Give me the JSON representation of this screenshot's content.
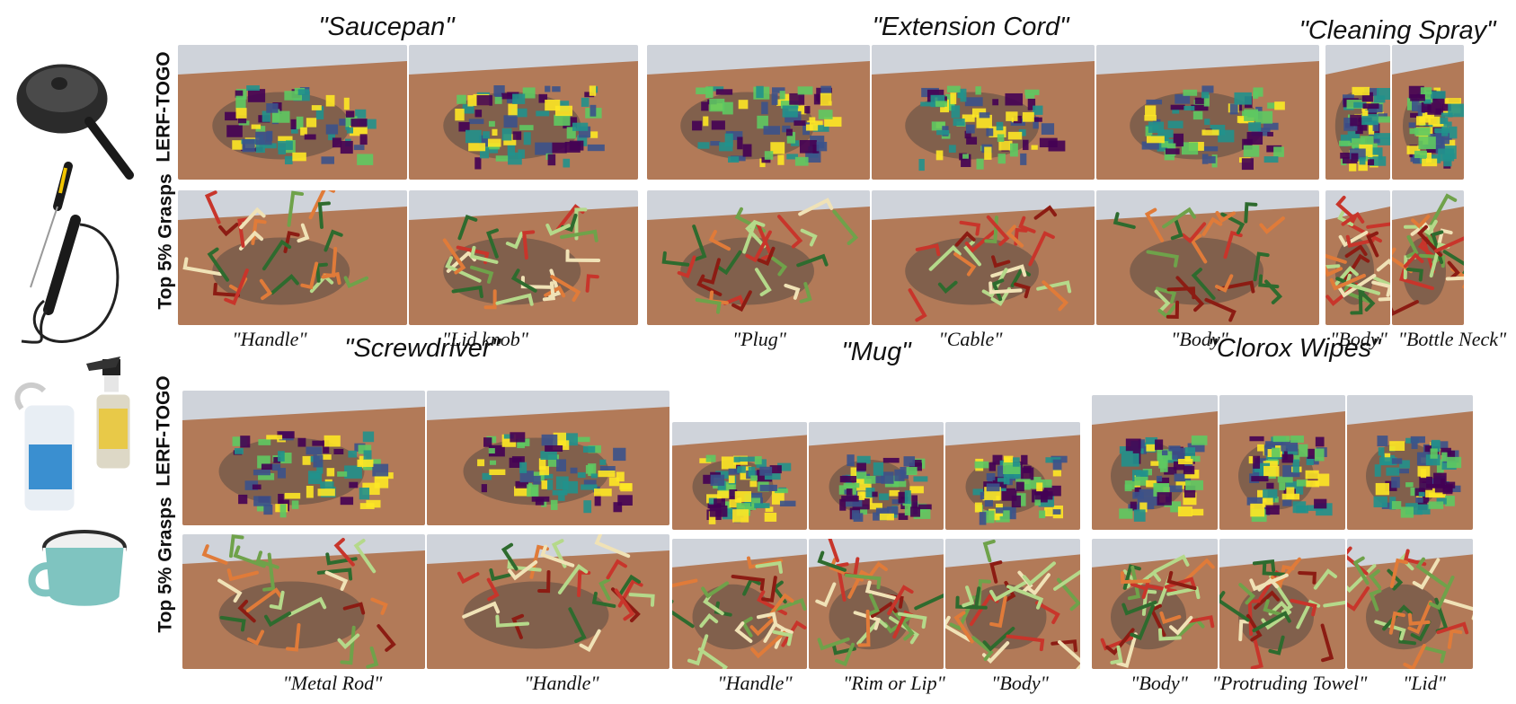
{
  "groups": [
    {
      "title": "\"Saucepan\"",
      "captions": [
        "\"Handle\"",
        "\"Lid knob\""
      ]
    },
    {
      "title": "\"Extension Cord\"",
      "captions": [
        "\"Plug\"",
        "\"Cable\"",
        "\"Body\""
      ]
    },
    {
      "title": "\"Cleaning Spray\"",
      "captions": [
        "\"Body\"",
        "\"Bottle Neck\""
      ]
    },
    {
      "title": "\"Screwdriver\"",
      "captions": [
        "\"Metal Rod\"",
        "\"Handle\""
      ]
    },
    {
      "title": "\"Mug\"",
      "captions": [
        "\"Handle\"",
        "\"Rim or Lip\"",
        "\"Body\""
      ]
    },
    {
      "title": "\"Clorox Wipes\"",
      "captions": [
        "\"Body\"",
        "\"Protruding Towel\"",
        "\"Lid\""
      ]
    }
  ],
  "row_labels": {
    "top": "LERF-TOGO",
    "bottom": "Top 5% Grasps"
  },
  "colors": {
    "table": "#b27a58",
    "background": "#f3f3f3",
    "viridis": [
      "#440154",
      "#3b528b",
      "#21918c",
      "#5ec962",
      "#fde725"
    ],
    "grasp": [
      "#8c1c13",
      "#c8352b",
      "#e07b39",
      "#f0e2b6",
      "#6fa24a",
      "#2e6b2e",
      "#b5d98a"
    ]
  }
}
